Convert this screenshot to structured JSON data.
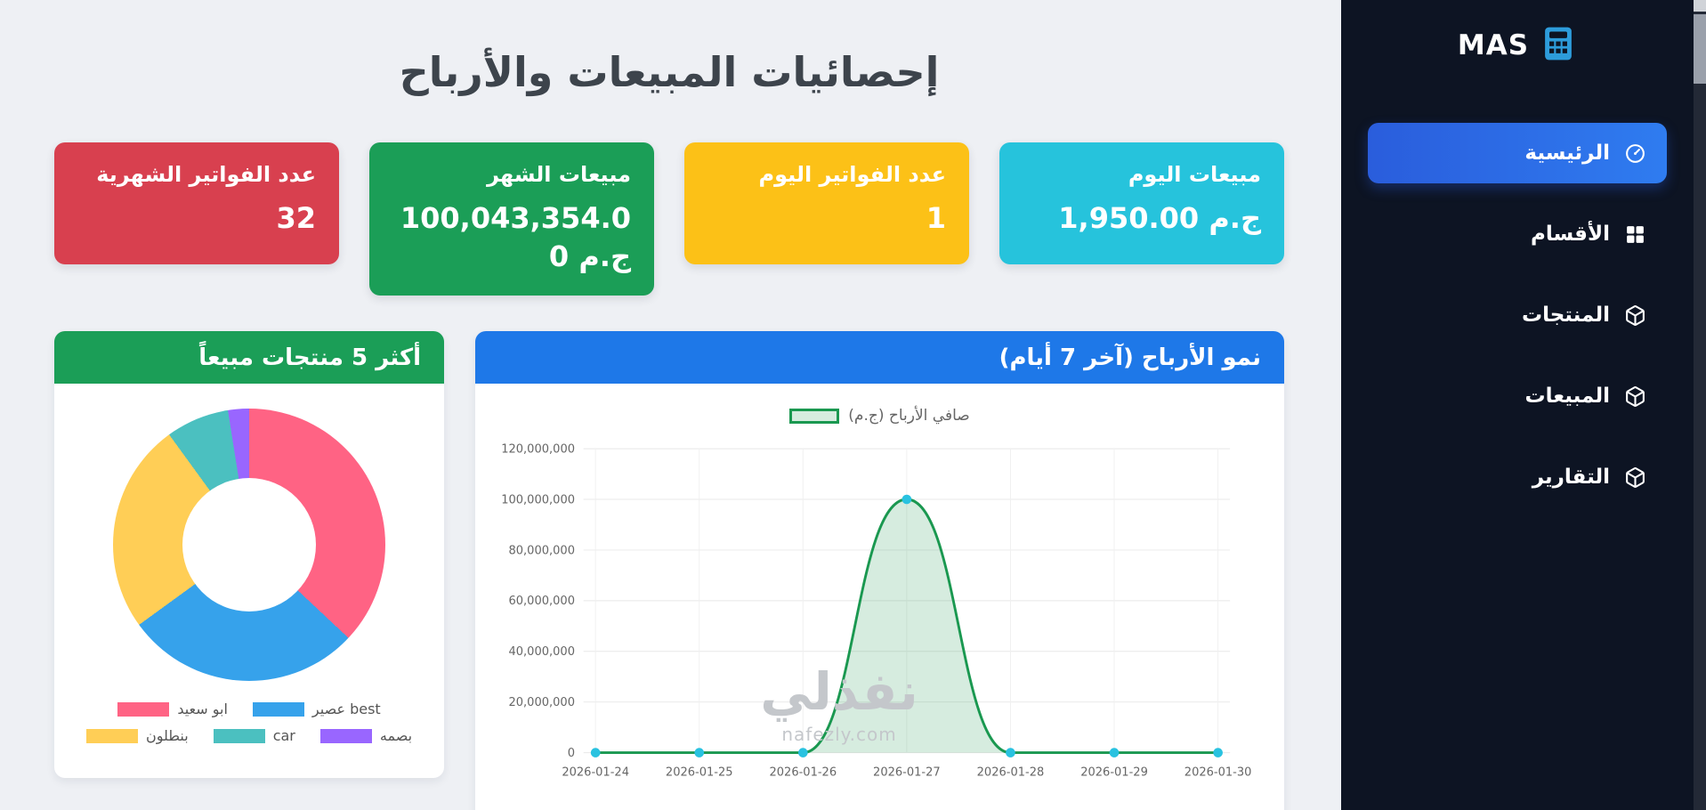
{
  "app": {
    "name": "MAS"
  },
  "sidebar": {
    "items": [
      {
        "label": "الرئيسية",
        "active": true
      },
      {
        "label": "الأقسام",
        "active": false
      },
      {
        "label": "المنتجات",
        "active": false
      },
      {
        "label": "المبيعات",
        "active": false
      },
      {
        "label": "التقارير",
        "active": false
      }
    ]
  },
  "page": {
    "title": "إحصائيات المبيعات والأرباح"
  },
  "stats": [
    {
      "label": "مبيعات اليوم",
      "value": "1,950.00 ج.م",
      "color": "#26c3dc"
    },
    {
      "label": "عدد الفواتير اليوم",
      "value": "1",
      "color": "#fcc117"
    },
    {
      "label": "مبيعات الشهر",
      "value": "100,043,354.00 ج.م",
      "color": "#1b9e57"
    },
    {
      "label": "عدد الفواتير الشهرية",
      "value": "32",
      "color": "#d8404f"
    }
  ],
  "panels": {
    "top_products": {
      "title": "أكثر 5 منتجات مبيعاً",
      "header_color": "#1b9e57"
    },
    "profit_growth": {
      "title": "نمو الأرباح (آخر 7 أيام)",
      "header_color": "#1e78e8"
    }
  },
  "chart_data": [
    {
      "type": "pie",
      "title": "أكثر 5 منتجات مبيعاً",
      "labels": [
        "ابو سعيد",
        "عصير best",
        "بنطلون",
        "car",
        "بصمه"
      ],
      "values": [
        37,
        28,
        25,
        7.5,
        2.5
      ],
      "colors": [
        "#ff6384",
        "#36a2eb",
        "#ffce56",
        "#4bc0c0",
        "#9966ff"
      ],
      "donut": true,
      "legend_position": "bottom"
    },
    {
      "type": "line",
      "title": "نمو الأرباح (آخر 7 أيام)",
      "legend": "صافي الأرباح (ج.م)",
      "x": [
        "2026-01-24",
        "2026-01-25",
        "2026-01-26",
        "2026-01-27",
        "2026-01-28",
        "2026-01-29",
        "2026-01-30"
      ],
      "values": [
        0,
        0,
        0,
        100000000,
        0,
        0,
        0
      ],
      "ylim": [
        0,
        120000000
      ],
      "ytick_step": 20000000,
      "line_color": "#1a9850",
      "fill_color": "rgba(26,152,80,0.18)",
      "point_color": "#29c2e0",
      "grid": true,
      "legend_position": "top"
    }
  ],
  "watermark": {
    "text": "نفذلي",
    "domain": "nafezly.com"
  },
  "colors": {
    "sidebar_bg": "#0d1423",
    "active_item": "#2d6fe8",
    "page_bg": "#eef0f4",
    "logo_icon": "#2d9cdb",
    "scrollbar_track": "#232936",
    "scrollbar_thumb": "#9aa0ab"
  }
}
